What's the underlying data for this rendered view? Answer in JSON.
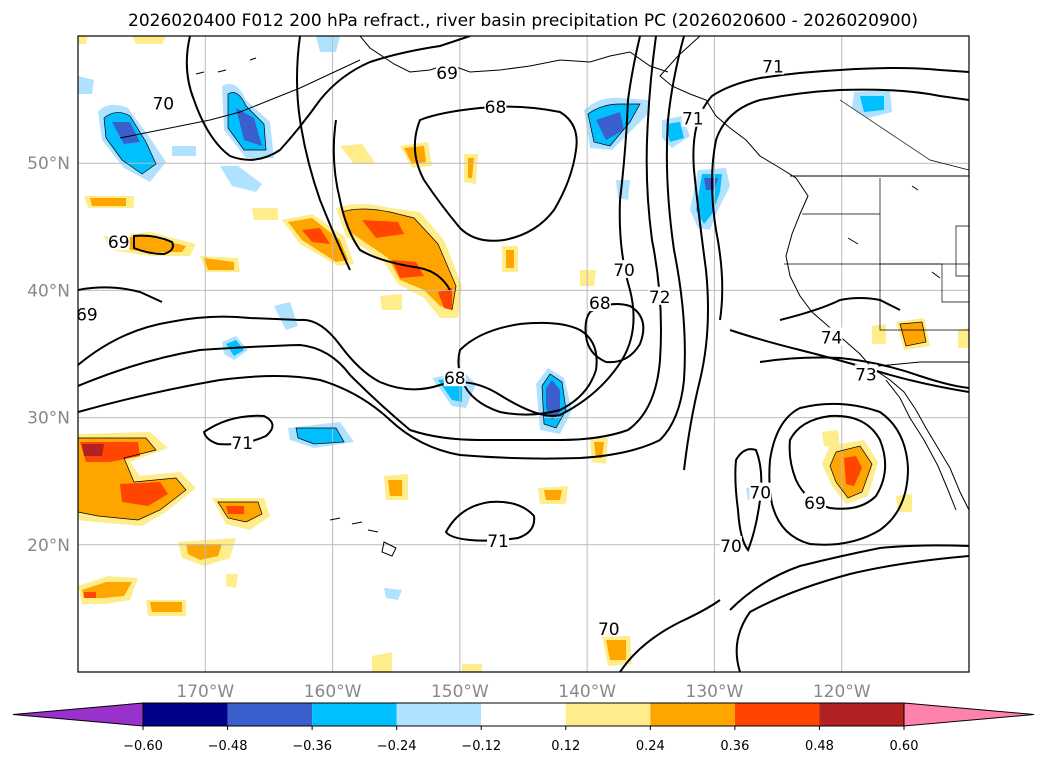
{
  "chart_data": {
    "type": "map-contour",
    "title": "2026020400 F012 200 hPa refract., river basin precipitation PC (2026020600 - 2026020900)",
    "lon_range": [
      -180,
      -110
    ],
    "lat_range": [
      10,
      60
    ],
    "lon_ticks": [
      -170,
      -160,
      -150,
      -140,
      -130,
      -120
    ],
    "lon_tick_labels": [
      "170°W",
      "160°W",
      "150°W",
      "140°W",
      "130°W",
      "120°W"
    ],
    "lat_ticks": [
      20,
      30,
      40,
      50
    ],
    "lat_tick_labels": [
      "20°N",
      "30°N",
      "40°N",
      "50°N"
    ],
    "grid": true,
    "colorbar": {
      "orientation": "horizontal",
      "extend": "both",
      "levels": [
        -0.6,
        -0.48,
        -0.36,
        -0.24,
        -0.12,
        0.12,
        0.24,
        0.36,
        0.48,
        0.6
      ],
      "tick_labels": [
        "−0.60",
        "−0.48",
        "−0.36",
        "−0.24",
        "−0.12",
        "0.12",
        "0.24",
        "0.36",
        "0.48",
        "0.60"
      ],
      "colors": [
        "#9932cc",
        "#00008b",
        "#3a5fcd",
        "#00bfff",
        "#b0e2ff",
        "#ffffff",
        "#ffec8b",
        "#ffa500",
        "#ff4500",
        "#b22222",
        "#ff82ab"
      ]
    },
    "contour_labels": [
      {
        "text": "69",
        "lon": -151.0,
        "lat": 57.1
      },
      {
        "text": "70",
        "lon": -173.3,
        "lat": 54.7
      },
      {
        "text": "68",
        "lon": -147.2,
        "lat": 54.4
      },
      {
        "text": "71",
        "lon": -125.4,
        "lat": 57.6
      },
      {
        "text": "71",
        "lon": -131.7,
        "lat": 53.5
      },
      {
        "text": "69",
        "lon": -176.8,
        "lat": 43.8
      },
      {
        "text": "69",
        "lon": -179.3,
        "lat": 38.1
      },
      {
        "text": "70",
        "lon": -137.1,
        "lat": 41.6
      },
      {
        "text": "72",
        "lon": -134.3,
        "lat": 39.5
      },
      {
        "text": "68",
        "lon": -139.0,
        "lat": 39.0
      },
      {
        "text": "74",
        "lon": -120.8,
        "lat": 36.3
      },
      {
        "text": "73",
        "lon": -118.1,
        "lat": 33.4
      },
      {
        "text": "68",
        "lon": -150.4,
        "lat": 33.1
      },
      {
        "text": "71",
        "lon": -167.1,
        "lat": 28.0
      },
      {
        "text": "70",
        "lon": -126.4,
        "lat": 24.1
      },
      {
        "text": "69",
        "lon": -122.1,
        "lat": 23.3
      },
      {
        "text": "71",
        "lon": -147.0,
        "lat": 20.3
      },
      {
        "text": "70",
        "lon": -128.7,
        "lat": 19.9
      },
      {
        "text": "70",
        "lon": -138.3,
        "lat": 13.4
      }
    ]
  }
}
